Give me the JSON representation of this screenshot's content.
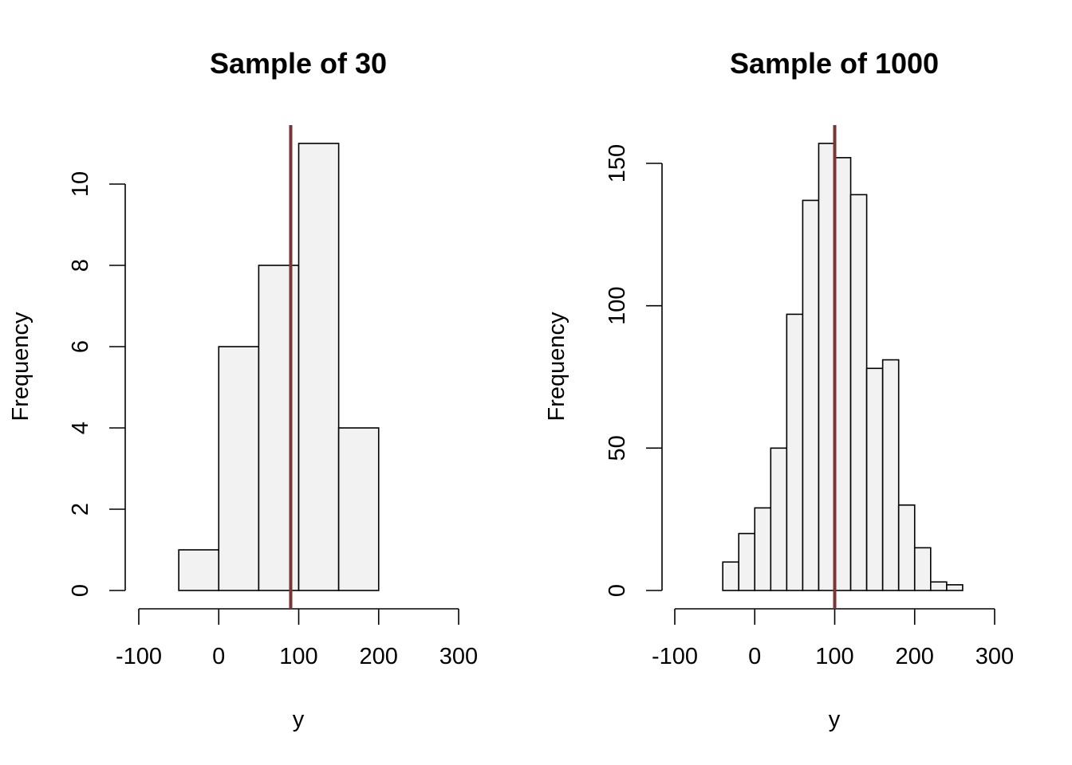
{
  "chart_data": [
    {
      "type": "bar",
      "subtype": "histogram",
      "title": "Sample of 30",
      "xlabel": "y",
      "ylabel": "Frequency",
      "bin_edges": [
        -50,
        0,
        50,
        100,
        150,
        200
      ],
      "values": [
        1,
        6,
        8,
        11,
        4
      ],
      "xlim": [
        -100,
        300
      ],
      "ylim": [
        0,
        11
      ],
      "xticks": [
        -100,
        0,
        100,
        200,
        300
      ],
      "yticks": [
        0,
        2,
        4,
        6,
        8,
        10
      ],
      "vline": 90,
      "bar_color": "#f2f2f2",
      "vline_color": "#7a3535",
      "grid": false
    },
    {
      "type": "bar",
      "subtype": "histogram",
      "title": "Sample of 1000",
      "xlabel": "y",
      "ylabel": "Frequency",
      "bin_edges": [
        -40,
        -20,
        0,
        20,
        40,
        60,
        80,
        100,
        120,
        140,
        160,
        180,
        200,
        220,
        240,
        260
      ],
      "values": [
        10,
        20,
        29,
        50,
        97,
        137,
        157,
        152,
        139,
        78,
        81,
        30,
        15,
        3,
        2
      ],
      "xlim": [
        -100,
        300
      ],
      "ylim": [
        0,
        157
      ],
      "xticks": [
        -100,
        0,
        100,
        200,
        300
      ],
      "yticks": [
        0,
        50,
        100,
        150
      ],
      "vline": 100,
      "bar_color": "#f2f2f2",
      "vline_color": "#7a3535",
      "grid": false
    }
  ]
}
